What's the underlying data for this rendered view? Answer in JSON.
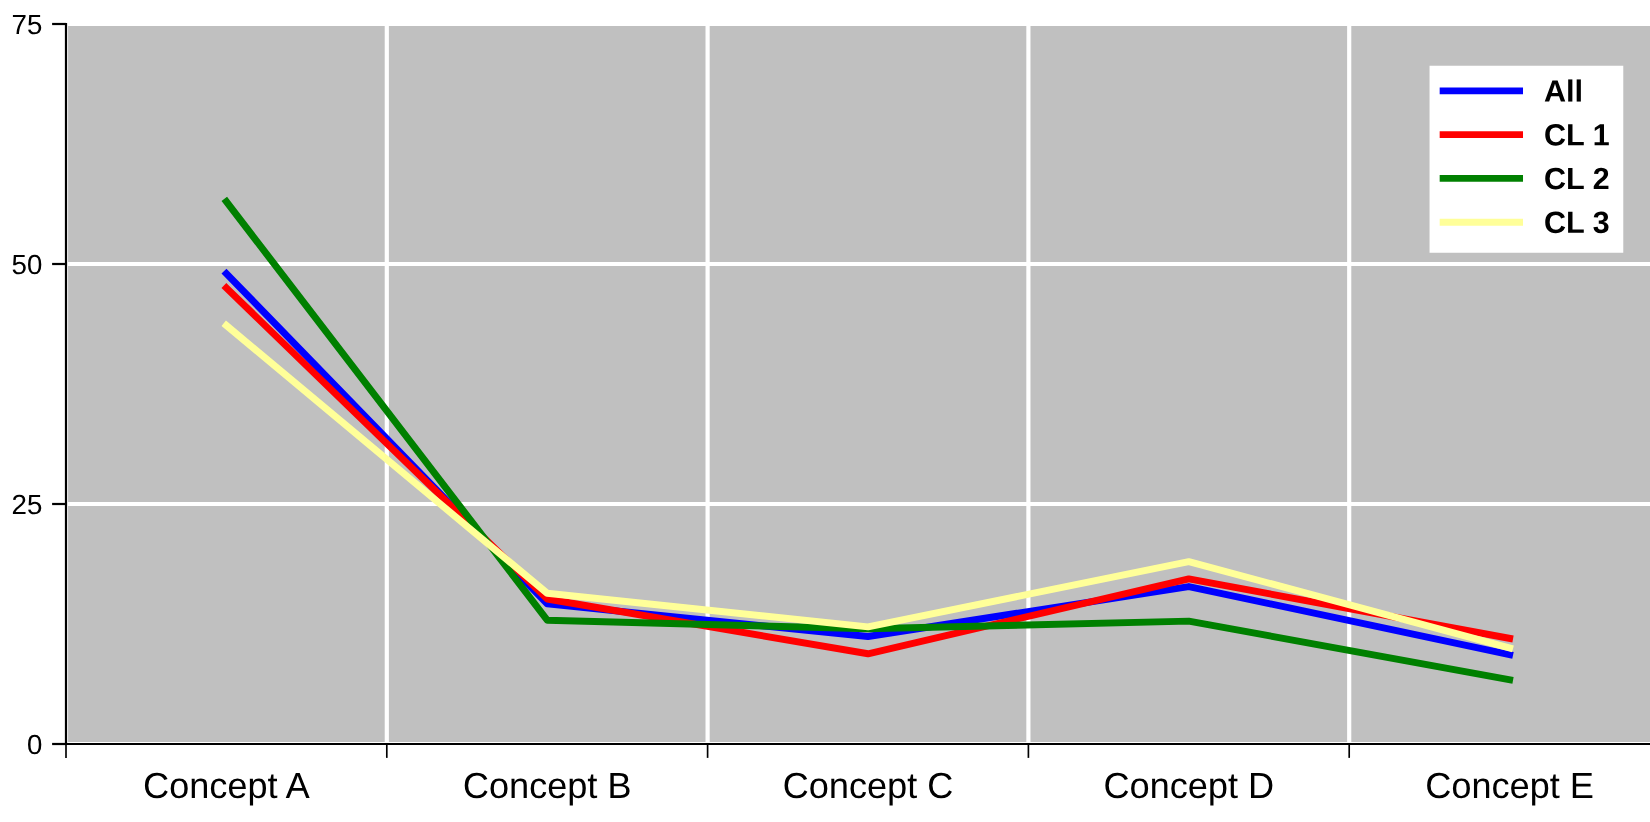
{
  "chart_data": {
    "type": "line",
    "categories": [
      "Concept A",
      "Concept B",
      "Concept C",
      "Concept D",
      "Concept E"
    ],
    "series": [
      {
        "name": "All",
        "color": "#0000ff",
        "values": [
          49.0,
          14.6,
          11.2,
          16.4,
          9.3
        ]
      },
      {
        "name": "CL 1",
        "color": "#ff0000",
        "values": [
          47.5,
          15.1,
          9.4,
          17.2,
          11.0
        ]
      },
      {
        "name": "CL 2",
        "color": "#008000",
        "values": [
          56.5,
          12.9,
          12.0,
          12.8,
          6.7
        ]
      },
      {
        "name": "CL 3",
        "color": "#ffff99",
        "values": [
          43.6,
          15.7,
          12.2,
          19.0,
          10.0
        ]
      }
    ],
    "ylim": [
      0,
      75
    ],
    "yticks": [
      0,
      25,
      50,
      75
    ],
    "grid": true,
    "legend": "top right",
    "marker": "none",
    "line_style": "solid"
  }
}
